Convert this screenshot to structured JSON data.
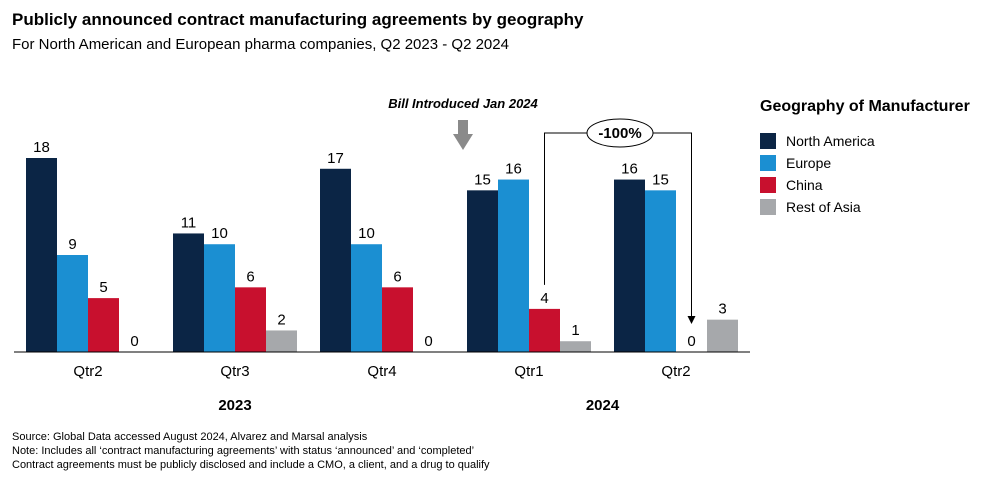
{
  "chart_data": {
    "type": "bar",
    "title": "Publicly announced contract manufacturing agreements by geography",
    "subtitle": "For North American and European pharma companies, Q2 2023 - Q2 2024",
    "categories": [
      "Qtr2",
      "Qtr3",
      "Qtr4",
      "Qtr1",
      "Qtr2"
    ],
    "year_groups": [
      {
        "label": "2023",
        "categories": [
          0,
          1,
          2
        ]
      },
      {
        "label": "2024",
        "categories": [
          3,
          4
        ]
      }
    ],
    "series": [
      {
        "name": "North America",
        "color": "#0b2545",
        "values": [
          18,
          11,
          17,
          15,
          16
        ]
      },
      {
        "name": "Europe",
        "color": "#1b8fd2",
        "values": [
          9,
          10,
          10,
          16,
          15
        ]
      },
      {
        "name": "China",
        "color": "#c8102e",
        "values": [
          5,
          6,
          6,
          4,
          0
        ]
      },
      {
        "name": "Rest of Asia",
        "color": "#a6a8ab",
        "values": [
          0,
          2,
          0,
          1,
          3
        ]
      }
    ],
    "ylim": [
      0,
      18
    ],
    "legend_title": "Geography of Manufacturer",
    "legend_position": "right",
    "annotations": {
      "event_label": "Bill Introduced Jan 2024",
      "change_label": "-100%"
    }
  },
  "footnotes": [
    "Source: Global Data accessed August 2024, Alvarez and Marsal analysis",
    "Note: Includes all ‘contract manufacturing agreements’ with status ‘announced’ and ‘completed’",
    "Contract agreements must be publicly disclosed and include a CMO, a client, and a drug to qualify"
  ]
}
